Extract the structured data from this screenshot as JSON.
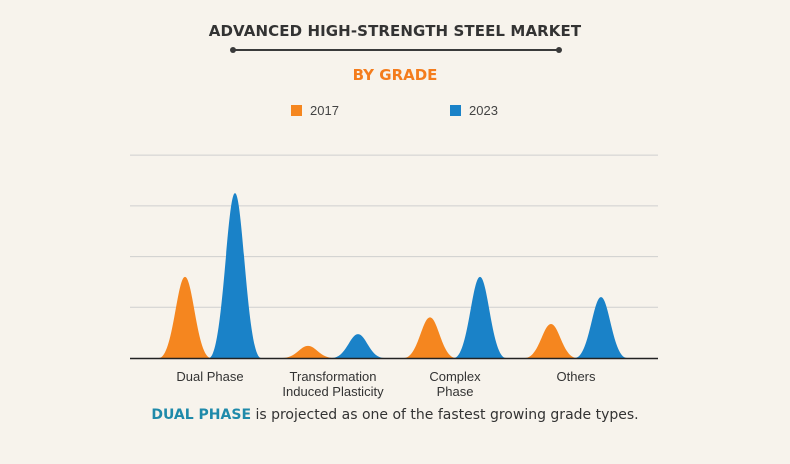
{
  "title": "ADVANCED HIGH-STRENGTH STEEL MARKET",
  "subtitle": "BY GRADE",
  "colors": {
    "accent": "#f47c1c",
    "series_2017": "#f5861f",
    "series_2023": "#1a82c8",
    "gridline": "#cfcfcf",
    "highlight": "#1f8aaa"
  },
  "legend": [
    {
      "label": "2017",
      "color": "#f5861f"
    },
    {
      "label": "2023",
      "color": "#1a82c8"
    }
  ],
  "footnote": {
    "highlight": "DUAL PHASE",
    "rest": " is projected as one of the fastest growing grade types."
  },
  "chart_data": {
    "type": "area",
    "shape": "peaked",
    "categories": [
      "Dual Phase",
      "Transformation\nInduced Plasticity",
      "Complex\nPhase",
      "Others"
    ],
    "series": [
      {
        "name": "2017",
        "values": [
          1.6,
          0.24,
          0.8,
          0.67
        ]
      },
      {
        "name": "2023",
        "values": [
          3.25,
          0.47,
          1.6,
          1.2
        ]
      }
    ],
    "ylim": [
      0,
      4.2
    ],
    "yticks": [
      0,
      1,
      2,
      3,
      4
    ],
    "tick_labels_shown": false,
    "grid": true,
    "legend_position": "top-center"
  }
}
